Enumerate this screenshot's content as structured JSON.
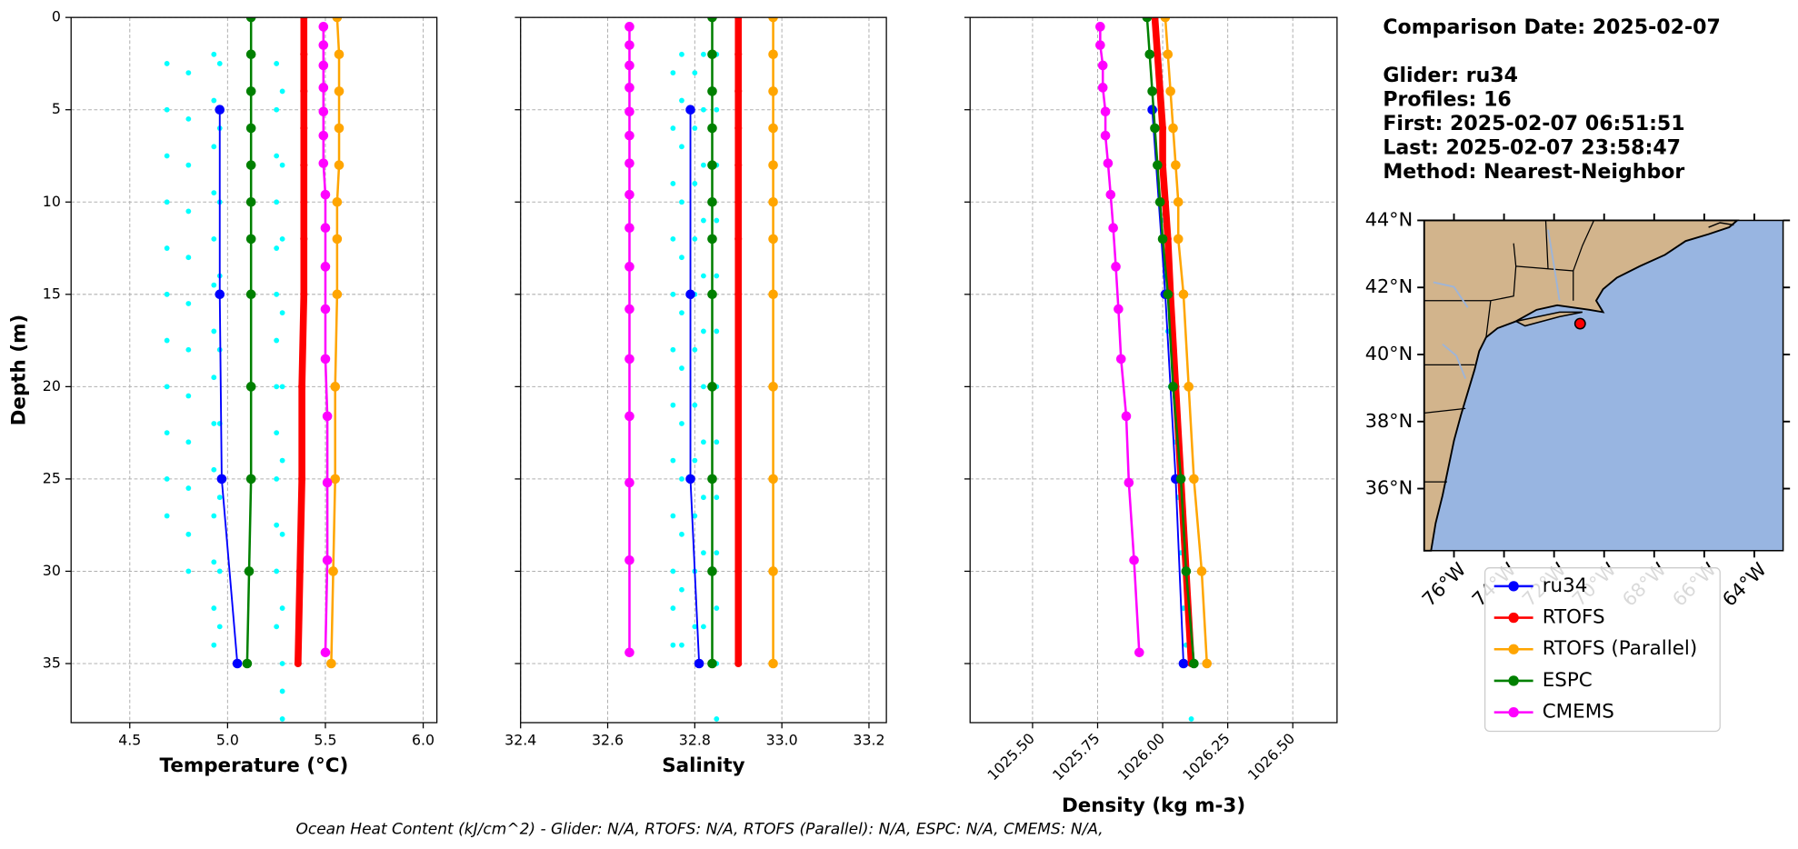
{
  "chart_data": [
    {
      "type": "line",
      "xlabel": "Temperature (°C)",
      "ylabel": "Depth (m)",
      "xlim": [
        4.2,
        6.07
      ],
      "ylim": [
        38.2,
        0
      ],
      "xticks": [
        {
          "value": 4.5,
          "label": "4.5"
        },
        {
          "value": 5.0,
          "label": "5.0"
        },
        {
          "value": 5.5,
          "label": "5.5"
        },
        {
          "value": 6.0,
          "label": "6.0"
        }
      ],
      "yticks": [
        0,
        5,
        10,
        15,
        20,
        25,
        30,
        35
      ],
      "grid": true,
      "series": [
        {
          "color": "#00ffff",
          "linestyle": "none",
          "x": [
            4.69,
            4.69,
            4.69,
            4.69,
            4.69,
            4.69,
            4.69,
            4.69,
            4.69,
            4.69,
            4.69,
            4.8,
            4.8,
            4.8,
            4.8,
            4.8,
            4.8,
            4.8,
            4.8,
            4.8,
            4.8,
            4.8,
            4.8,
            4.93,
            4.93,
            4.93,
            4.93,
            4.93,
            4.93,
            4.93,
            4.93,
            4.93,
            4.93,
            4.93,
            4.93,
            4.93,
            4.93,
            4.96,
            4.96,
            4.96,
            4.96,
            4.96,
            4.96,
            4.96,
            4.96,
            4.96,
            5.25,
            5.25,
            5.25,
            5.25,
            5.25,
            5.25,
            5.25,
            5.25,
            5.25,
            5.25,
            5.25,
            5.25,
            5.25,
            5.28,
            5.28,
            5.28,
            5.28,
            5.28,
            5.28,
            5.28,
            5.28,
            5.28,
            5.28,
            5.28
          ],
          "y": [
            2.5,
            5,
            7.5,
            10,
            12.5,
            15,
            17.5,
            20,
            22.5,
            25,
            27,
            3,
            5.5,
            8,
            10.5,
            13,
            15.5,
            18,
            20.5,
            23,
            25.5,
            28,
            30,
            2,
            4.5,
            7,
            9.5,
            12,
            14.5,
            17,
            19.5,
            22,
            24.5,
            27,
            29.5,
            32,
            34,
            2.5,
            6,
            10,
            14,
            18,
            22,
            26,
            30,
            33,
            2.5,
            5,
            7.5,
            10,
            12.5,
            15,
            17.5,
            20,
            22.5,
            25,
            27.5,
            30,
            33,
            4,
            8,
            12,
            16,
            20,
            24,
            28,
            32,
            35,
            36.5,
            38
          ]
        },
        {
          "name": "ru34",
          "color": "#0000ff",
          "linewidth": 1.5,
          "x": [
            4.96,
            4.96,
            4.97,
            5.05
          ],
          "y": [
            5,
            15,
            25,
            35
          ]
        },
        {
          "name": "RTOFS",
          "color": "#ff0000",
          "linewidth": 6,
          "x": [
            5.39,
            5.39,
            5.39,
            5.39,
            5.39,
            5.39,
            5.39,
            5.39,
            5.38,
            5.38,
            5.37,
            5.36
          ],
          "y": [
            0,
            2,
            4,
            6,
            8,
            10,
            12,
            15,
            20,
            25,
            30,
            35
          ]
        },
        {
          "name": "RTOFS (Parallel)",
          "color": "#ffa500",
          "linewidth": 2,
          "x": [
            5.56,
            5.57,
            5.57,
            5.57,
            5.57,
            5.56,
            5.56,
            5.56,
            5.55,
            5.55,
            5.54,
            5.53
          ],
          "y": [
            0,
            2,
            4,
            6,
            8,
            10,
            12,
            15,
            20,
            25,
            30,
            35
          ]
        },
        {
          "name": "ESPC",
          "color": "#008000",
          "linewidth": 2,
          "x": [
            5.12,
            5.12,
            5.12,
            5.12,
            5.12,
            5.12,
            5.12,
            5.12,
            5.12,
            5.12,
            5.11,
            5.1
          ],
          "y": [
            0,
            2,
            4,
            6,
            8,
            10,
            12,
            15,
            20,
            25,
            30,
            35
          ]
        },
        {
          "name": "CMEMS",
          "color": "#ff00ff",
          "linewidth": 2,
          "x": [
            5.49,
            5.49,
            5.49,
            5.49,
            5.49,
            5.49,
            5.49,
            5.5,
            5.5,
            5.5,
            5.5,
            5.5,
            5.51,
            5.51,
            5.51,
            5.5
          ],
          "y": [
            0.5,
            1.5,
            2.6,
            3.8,
            5.1,
            6.4,
            7.9,
            9.6,
            11.4,
            13.5,
            15.8,
            18.5,
            21.6,
            25.2,
            29.4,
            34.4
          ]
        }
      ]
    },
    {
      "type": "line",
      "xlabel": "Salinity",
      "sharey": true,
      "xlim": [
        32.4,
        33.24
      ],
      "ylim": [
        38.2,
        0
      ],
      "xticks": [
        32.4,
        32.6,
        32.8,
        {
          "value": 33.0,
          "label": "33.0"
        },
        33.2
      ],
      "grid": true,
      "series": [
        {
          "color": "#00ffff",
          "linestyle": "none",
          "x": [
            32.75,
            32.75,
            32.75,
            32.75,
            32.75,
            32.75,
            32.75,
            32.75,
            32.75,
            32.75,
            32.75,
            32.75,
            32.77,
            32.77,
            32.77,
            32.77,
            32.77,
            32.77,
            32.77,
            32.77,
            32.77,
            32.77,
            32.77,
            32.77,
            32.8,
            32.8,
            32.8,
            32.8,
            32.8,
            32.8,
            32.8,
            32.8,
            32.8,
            32.8,
            32.8,
            32.82,
            32.82,
            32.82,
            32.82,
            32.82,
            32.82,
            32.82,
            32.82,
            32.82,
            32.82,
            32.82,
            32.85,
            32.85,
            32.85,
            32.85,
            32.85,
            32.85,
            32.85,
            32.85,
            32.85,
            32.85,
            32.85,
            32.85,
            32.85
          ],
          "y": [
            3,
            6,
            9,
            12,
            15,
            18,
            21,
            24,
            27,
            30,
            32,
            34,
            2,
            4.5,
            7,
            10,
            13,
            16,
            19,
            22,
            25,
            28,
            31,
            34,
            3,
            6,
            9,
            12,
            15,
            18,
            21,
            24,
            27,
            30,
            33,
            2,
            5,
            8,
            11,
            14,
            17,
            20,
            23,
            26,
            29,
            33,
            2,
            5,
            8,
            11,
            14,
            17,
            20,
            23,
            26,
            29,
            32,
            35,
            38
          ]
        },
        {
          "name": "ru34",
          "color": "#0000ff",
          "linewidth": 1.5,
          "x": [
            32.79,
            32.79,
            32.79,
            32.81
          ],
          "y": [
            5,
            15,
            25,
            35
          ]
        },
        {
          "name": "RTOFS",
          "color": "#ff0000",
          "linewidth": 6,
          "x": [
            32.9,
            32.9,
            32.9,
            32.9,
            32.9,
            32.9,
            32.9,
            32.9,
            32.9,
            32.9,
            32.9,
            32.9
          ],
          "y": [
            0,
            2,
            4,
            6,
            8,
            10,
            12,
            15,
            20,
            25,
            30,
            35
          ]
        },
        {
          "name": "RTOFS (Parallel)",
          "color": "#ffa500",
          "linewidth": 2,
          "x": [
            32.98,
            32.98,
            32.98,
            32.98,
            32.98,
            32.98,
            32.98,
            32.98,
            32.98,
            32.98,
            32.98,
            32.98
          ],
          "y": [
            0,
            2,
            4,
            6,
            8,
            10,
            12,
            15,
            20,
            25,
            30,
            35
          ]
        },
        {
          "name": "ESPC",
          "color": "#008000",
          "linewidth": 2,
          "x": [
            32.84,
            32.84,
            32.84,
            32.84,
            32.84,
            32.84,
            32.84,
            32.84,
            32.84,
            32.84,
            32.84,
            32.84
          ],
          "y": [
            0,
            2,
            4,
            6,
            8,
            10,
            12,
            15,
            20,
            25,
            30,
            35
          ]
        },
        {
          "name": "CMEMS",
          "color": "#ff00ff",
          "linewidth": 2,
          "x": [
            32.65,
            32.65,
            32.65,
            32.65,
            32.65,
            32.65,
            32.65,
            32.65,
            32.65,
            32.65,
            32.65,
            32.65,
            32.65,
            32.65,
            32.65,
            32.65
          ],
          "y": [
            0.5,
            1.5,
            2.6,
            3.8,
            5.1,
            6.4,
            7.9,
            9.6,
            11.4,
            13.5,
            15.8,
            18.5,
            21.6,
            25.2,
            29.4,
            34.4
          ]
        }
      ]
    },
    {
      "type": "line",
      "xlabel": "Density (kg m-3)",
      "sharey": true,
      "xtick_rotation": 45,
      "xlim": [
        1025.26,
        1026.67
      ],
      "ylim": [
        38.2,
        0
      ],
      "xticks": [
        {
          "value": 1025.5,
          "label": "1025.50"
        },
        1025.75,
        {
          "value": 1026.0,
          "label": "1026.00"
        },
        1026.25,
        {
          "value": 1026.5,
          "label": "1026.50"
        }
      ],
      "grid": true,
      "series": [
        {
          "color": "#00ffff",
          "linestyle": "none",
          "x": [
            1025.96,
            1025.97,
            1025.98,
            1026.0,
            1026.01,
            1026.02,
            1026.03,
            1026.05,
            1026.06,
            1026.07,
            1026.08,
            1026.09,
            1025.98,
            1025.99,
            1026.0,
            1026.01,
            1026.02,
            1026.03,
            1026.05,
            1026.06,
            1026.07,
            1026.08,
            1026.09,
            1026.1,
            1026.11
          ],
          "y": [
            2,
            5,
            8,
            11,
            14,
            17,
            20,
            23,
            26,
            29,
            32,
            34,
            2,
            5,
            8,
            11,
            14,
            17,
            20,
            23,
            26,
            29,
            32,
            35,
            38
          ]
        },
        {
          "name": "ru34",
          "color": "#0000ff",
          "linewidth": 1.5,
          "x": [
            1025.96,
            1026.01,
            1026.05,
            1026.08
          ],
          "y": [
            5,
            15,
            25,
            35
          ]
        },
        {
          "name": "RTOFS",
          "color": "#ff0000",
          "linewidth": 6,
          "x": [
            1025.97,
            1025.98,
            1025.99,
            1026.0,
            1026.0,
            1026.01,
            1026.02,
            1026.03,
            1026.05,
            1026.07,
            1026.09,
            1026.11
          ],
          "y": [
            0,
            2,
            4,
            6,
            8,
            10,
            12,
            15,
            20,
            25,
            30,
            35
          ]
        },
        {
          "name": "RTOFS (Parallel)",
          "color": "#ffa500",
          "linewidth": 2,
          "x": [
            1026.01,
            1026.02,
            1026.03,
            1026.04,
            1026.05,
            1026.06,
            1026.06,
            1026.08,
            1026.1,
            1026.12,
            1026.15,
            1026.17
          ],
          "y": [
            0,
            2,
            4,
            6,
            8,
            10,
            12,
            15,
            20,
            25,
            30,
            35
          ]
        },
        {
          "name": "ESPC",
          "color": "#008000",
          "linewidth": 2,
          "x": [
            1025.94,
            1025.95,
            1025.96,
            1025.97,
            1025.98,
            1025.99,
            1026.0,
            1026.02,
            1026.04,
            1026.07,
            1026.09,
            1026.12
          ],
          "y": [
            0,
            2,
            4,
            6,
            8,
            10,
            12,
            15,
            20,
            25,
            30,
            35
          ]
        },
        {
          "name": "CMEMS",
          "color": "#ff00ff",
          "linewidth": 2,
          "x": [
            1025.76,
            1025.76,
            1025.77,
            1025.77,
            1025.78,
            1025.78,
            1025.79,
            1025.8,
            1025.81,
            1025.82,
            1025.83,
            1025.84,
            1025.86,
            1025.87,
            1025.89,
            1025.91
          ],
          "y": [
            0.5,
            1.5,
            2.6,
            3.8,
            5.1,
            6.4,
            7.9,
            9.6,
            11.4,
            13.5,
            15.8,
            18.5,
            21.6,
            25.2,
            29.4,
            34.4
          ]
        }
      ]
    },
    {
      "type": "map",
      "xlim": [
        -77.19,
        -62.85
      ],
      "ylim": [
        34.15,
        44
      ],
      "xtick_rotation": 45,
      "xticks": [
        {
          "value": -76,
          "label": "76°W"
        },
        {
          "value": -74,
          "label": "74°W"
        },
        {
          "value": -72,
          "label": "72°W"
        },
        {
          "value": -70,
          "label": "70°W"
        },
        {
          "value": -68,
          "label": "68°W"
        },
        {
          "value": -66,
          "label": "66°W"
        },
        {
          "value": -64,
          "label": "64°W"
        }
      ],
      "yticks": [
        {
          "value": 36,
          "label": "36°N"
        },
        {
          "value": 38,
          "label": "38°N"
        },
        {
          "value": 40,
          "label": "40°N"
        },
        {
          "value": 42,
          "label": "42°N"
        },
        {
          "value": 44,
          "label": "44°N"
        }
      ],
      "glider_position": {
        "lon": -70.96,
        "lat": 40.92,
        "color": "#ff0000"
      }
    }
  ],
  "info": [
    "Comparison Date: 2025-02-07",
    "Glider: ru34",
    "Profiles: 16",
    "First: 2025-02-07 06:51:51",
    "Last: 2025-02-07 23:58:47",
    "Method: Nearest-Neighbor"
  ],
  "footer": "Ocean Heat Content (kJ/cm^2) - Glider: N/A,  RTOFS: N/A,  RTOFS (Parallel): N/A,  ESPC: N/A,  CMEMS: N/A,"
}
